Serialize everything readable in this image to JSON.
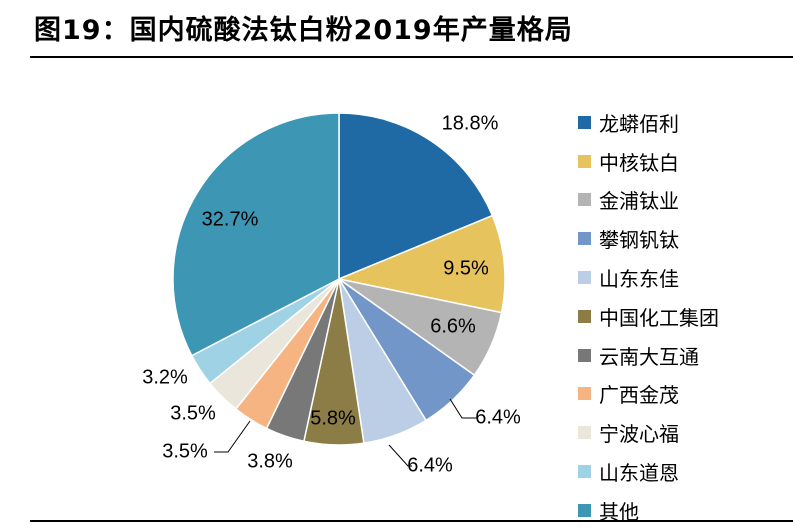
{
  "header": {
    "title": "图19：国内硫酸法钛白粉2019年产量格局"
  },
  "chart_data": {
    "type": "pie",
    "title": "图19：国内硫酸法钛白粉2019年产量格局",
    "legend_position": "right",
    "unit": "%",
    "slices": [
      {
        "name": "龙蟒佰利",
        "value": 18.8,
        "label": "18.8%",
        "color": "#1f6aa5"
      },
      {
        "name": "中核钛白",
        "value": 9.5,
        "label": "9.5%",
        "color": "#e6c35c"
      },
      {
        "name": "金浦钛业",
        "value": 6.6,
        "label": "6.6%",
        "color": "#b4b4b4"
      },
      {
        "name": "攀钢钒钛",
        "value": 6.4,
        "label": "6.4%",
        "color": "#7396c8"
      },
      {
        "name": "山东东佳",
        "value": 6.4,
        "label": "6.4%",
        "color": "#bccee6"
      },
      {
        "name": "中国化工集团",
        "value": 5.8,
        "label": "5.8%",
        "color": "#8c7d46"
      },
      {
        "name": "云南大互通",
        "value": 3.8,
        "label": "3.8%",
        "color": "#787878"
      },
      {
        "name": "广西金茂",
        "value": 3.5,
        "label": "3.5%",
        "color": "#f5b482"
      },
      {
        "name": "宁波心福",
        "value": 3.5,
        "label": "3.5%",
        "color": "#ebe6dc"
      },
      {
        "name": "山东道恩",
        "value": 3.2,
        "label": "3.2%",
        "color": "#a0d2e6"
      },
      {
        "name": "其他",
        "value": 32.7,
        "label": "32.7%",
        "color": "#3c96b4"
      }
    ]
  }
}
